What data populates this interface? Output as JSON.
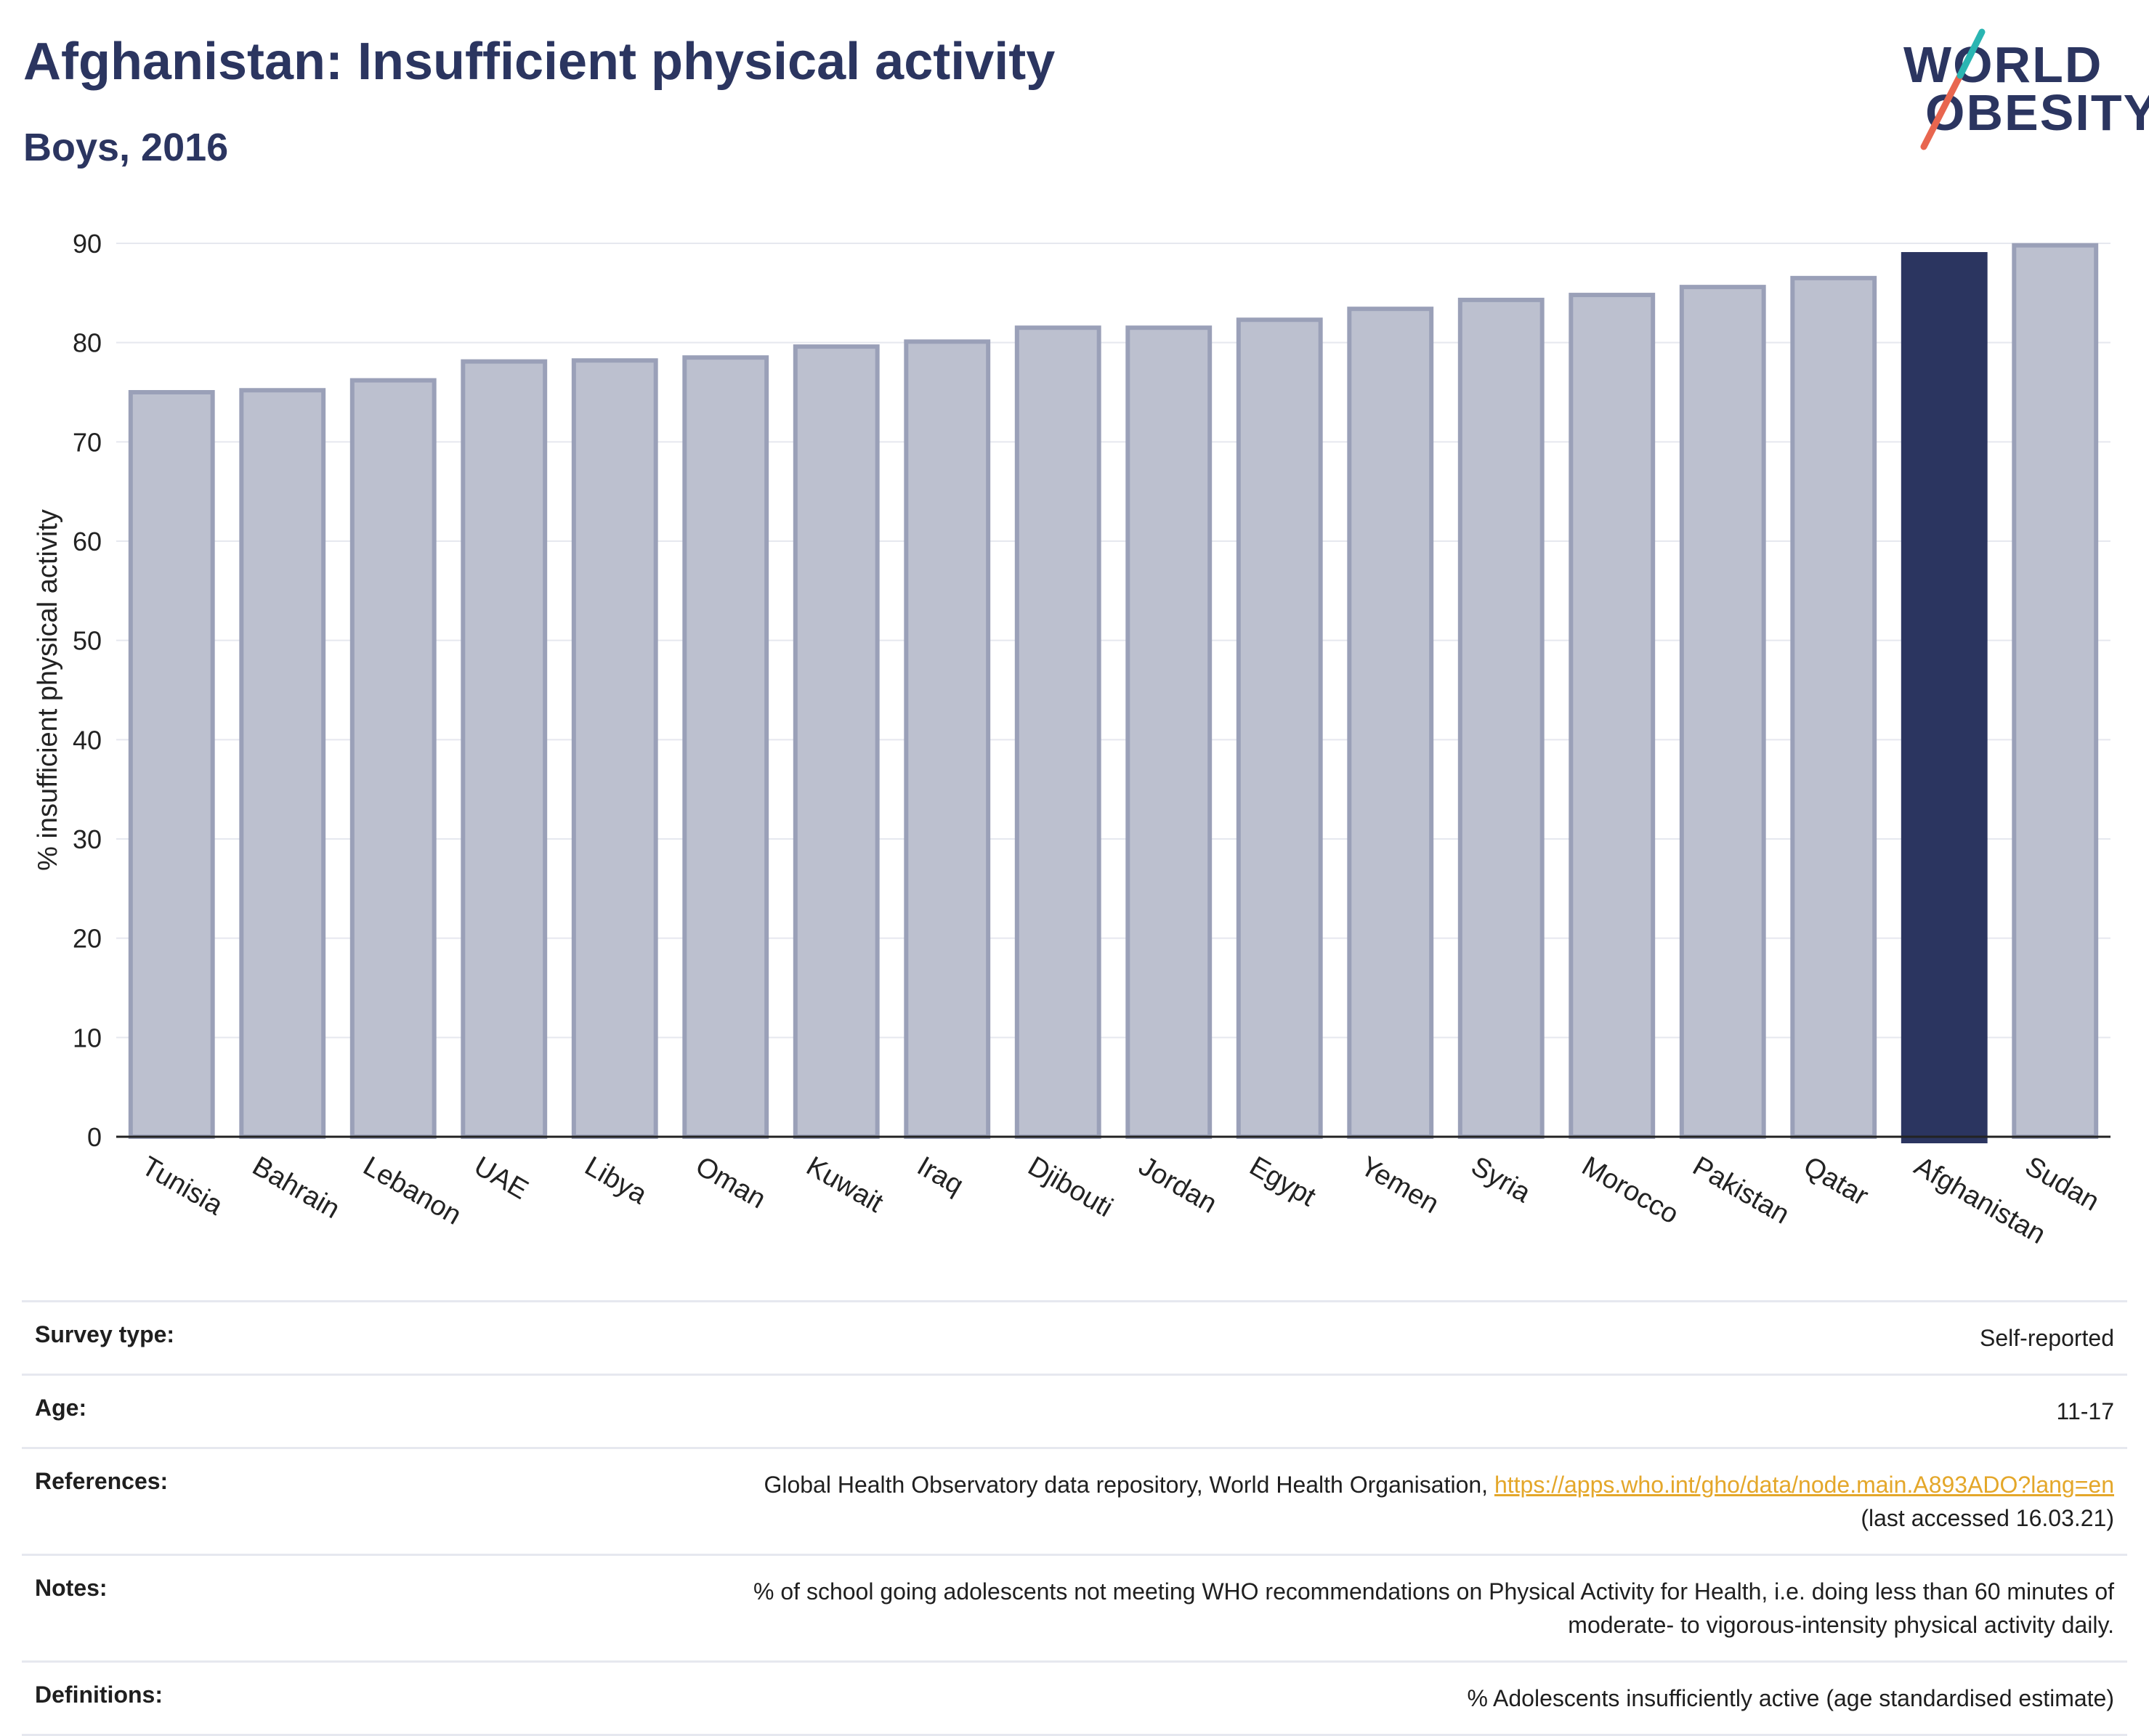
{
  "title": "Afghanistan: Insufficient physical activity",
  "subtitle": "Boys, 2016",
  "logo": {
    "line1": "WORLD",
    "line2": "OBESITY",
    "colors": [
      "#2b3560",
      "#2ab5b2",
      "#e8664f"
    ]
  },
  "colors": {
    "bar": "#bcc0cf",
    "bar_edge": "#9aa0b8",
    "highlight": "#2b3560",
    "grid": "#e6e8ef",
    "axis": "#222222"
  },
  "chart_data": {
    "type": "bar",
    "ylabel": "% insufficient physical activity",
    "ylim": [
      0,
      90
    ],
    "yticks": [
      0,
      10,
      20,
      30,
      40,
      50,
      60,
      70,
      80,
      90
    ],
    "grid": true,
    "highlight": "Afghanistan",
    "categories": [
      "Tunisia",
      "Bahrain",
      "Lebanon",
      "UAE",
      "Libya",
      "Oman",
      "Kuwait",
      "Iraq",
      "Djibouti",
      "Jordan",
      "Egypt",
      "Yemen",
      "Syria",
      "Morocco",
      "Pakistan",
      "Qatar",
      "Afghanistan",
      "Sudan"
    ],
    "values": [
      75.0,
      75.2,
      76.2,
      78.1,
      78.2,
      78.5,
      79.6,
      80.1,
      81.5,
      81.5,
      82.3,
      83.4,
      84.3,
      84.8,
      85.6,
      86.5,
      88.9,
      89.8
    ]
  },
  "meta": {
    "survey_type": {
      "label": "Survey type:",
      "value": "Self-reported"
    },
    "age": {
      "label": "Age:",
      "value": "11-17"
    },
    "references": {
      "label": "References:",
      "text": "Global Health Observatory data repository, World Health Organisation, ",
      "link": "https://apps.who.int/gho/data/node.main.A893ADO?lang=en",
      "suffix": "(last accessed 16.03.21)"
    },
    "notes": {
      "label": "Notes:",
      "line1": "% of school going adolescents not meeting WHO recommendations on Physical Activity for Health, i.e. doing less than 60 minutes of",
      "line2": "moderate- to vigorous-intensity physical activity daily."
    },
    "definitions": {
      "label": "Definitions:",
      "value": "% Adolescents insufficiently active (age standardised estimate)"
    }
  }
}
